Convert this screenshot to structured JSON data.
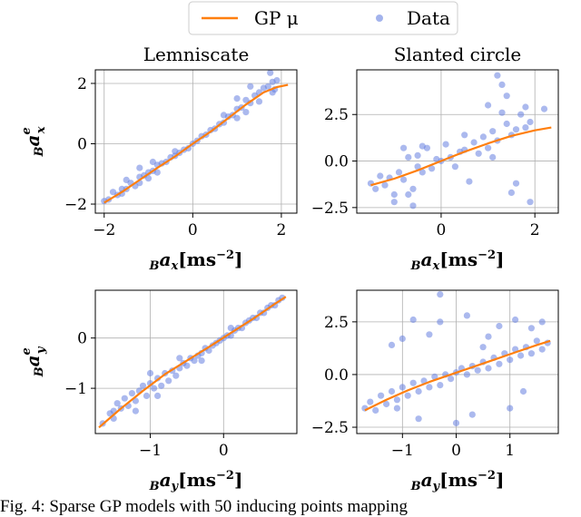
{
  "caption": "Fig. 4: Sparse GP models with 50 inducing points mapping",
  "legend": {
    "items": [
      {
        "label": "GP μ",
        "kind": "line",
        "color": "#ff7f0e"
      },
      {
        "label": "Data",
        "kind": "marker",
        "color": "#6680e0"
      }
    ]
  },
  "chart_data": [
    {
      "id": "lemniscate_x",
      "type": "scatter",
      "title": "Lemniscate",
      "ylabel_main": "a",
      "ylabel_sub": "B",
      "ylabel_sub2": "x",
      "ylabel_sup": "e",
      "xlabel_main": "a",
      "xlabel_sub": "B",
      "xlabel_sub2": "x",
      "xlabel_unit": "[ms",
      "xlabel_exp": "−2",
      "xlabel_close": "]",
      "xlim": [
        -2.2,
        2.35
      ],
      "ylim": [
        -2.3,
        2.45
      ],
      "xticks": [
        -2,
        0,
        2
      ],
      "xtick_labels": [
        "−2",
        "0",
        "2"
      ],
      "yticks": [
        -2,
        0,
        2
      ],
      "ytick_labels": [
        "−2",
        "0",
        "2"
      ],
      "series": [
        {
          "name": "GP μ",
          "kind": "line",
          "x": [
            -2.0,
            -1.6,
            -1.2,
            -0.8,
            -0.4,
            0.0,
            0.4,
            0.8,
            1.2,
            1.6,
            1.9,
            2.15
          ],
          "y": [
            -1.95,
            -1.6,
            -1.2,
            -0.8,
            -0.42,
            0.0,
            0.4,
            0.85,
            1.3,
            1.7,
            1.88,
            1.95
          ]
        },
        {
          "name": "Data",
          "kind": "scatter",
          "x": [
            -2.0,
            -1.9,
            -1.8,
            -1.7,
            -1.6,
            -1.6,
            -1.5,
            -1.4,
            -1.3,
            -1.2,
            -1.2,
            -1.1,
            -1.0,
            -1.0,
            -0.9,
            -0.8,
            -0.8,
            -0.7,
            -0.6,
            -0.5,
            -0.4,
            -0.3,
            -0.2,
            -0.1,
            0.0,
            0.1,
            0.2,
            0.3,
            0.4,
            0.5,
            0.6,
            0.7,
            0.8,
            0.9,
            1.0,
            1.0,
            1.1,
            1.2,
            1.2,
            1.3,
            1.4,
            1.5,
            1.5,
            1.6,
            1.7,
            1.8,
            1.8,
            1.9,
            1.3,
            1.0,
            0.7,
            -0.9,
            -1.5,
            1.75,
            1.85,
            -1.2,
            -0.4
          ],
          "y": [
            -1.9,
            -1.85,
            -1.6,
            -1.7,
            -1.5,
            -1.65,
            -1.5,
            -1.3,
            -1.4,
            -1.1,
            -1.3,
            -1.05,
            -0.95,
            -1.15,
            -0.9,
            -0.7,
            -0.95,
            -0.65,
            -0.6,
            -0.45,
            -0.4,
            -0.3,
            -0.2,
            -0.15,
            0.0,
            0.1,
            0.25,
            0.3,
            0.45,
            0.5,
            0.65,
            0.7,
            0.9,
            0.95,
            1.15,
            0.85,
            1.2,
            1.45,
            1.05,
            1.35,
            1.6,
            1.7,
            1.4,
            1.85,
            1.9,
            2.05,
            1.7,
            2.1,
            1.9,
            1.5,
            0.95,
            -0.6,
            -1.2,
            2.35,
            1.8,
            -0.8,
            -0.25
          ]
        }
      ]
    },
    {
      "id": "slanted_x",
      "type": "scatter",
      "title": "Slanted circle",
      "xlabel_main": "a",
      "xlabel_sub": "B",
      "xlabel_sub2": "x",
      "xlabel_unit": "[ms",
      "xlabel_exp": "−2",
      "xlabel_close": "]",
      "xlim": [
        -1.8,
        2.5
      ],
      "ylim": [
        -2.8,
        4.9
      ],
      "xticks": [
        0,
        2
      ],
      "xtick_labels": [
        "0",
        "2"
      ],
      "yticks": [
        -2.5,
        0,
        2.5
      ],
      "ytick_labels": [
        "−2.5",
        "0.0",
        "2.5"
      ],
      "series": [
        {
          "name": "GP μ",
          "kind": "line",
          "x": [
            -1.5,
            -1.0,
            -0.5,
            0.0,
            0.5,
            1.0,
            1.5,
            2.0,
            2.35
          ],
          "y": [
            -1.3,
            -0.95,
            -0.5,
            0.0,
            0.5,
            0.95,
            1.35,
            1.65,
            1.8
          ]
        },
        {
          "name": "Data",
          "kind": "scatter",
          "x": [
            -1.5,
            -1.4,
            -1.3,
            -1.2,
            -1.1,
            -1.0,
            -0.9,
            -0.8,
            -0.7,
            -0.6,
            -0.5,
            -0.4,
            -0.3,
            -0.2,
            -0.1,
            0.0,
            0.1,
            0.2,
            0.3,
            0.4,
            0.5,
            0.6,
            0.7,
            0.8,
            0.9,
            1.0,
            1.1,
            1.2,
            1.3,
            1.4,
            1.5,
            1.6,
            1.7,
            1.8,
            1.9,
            -1.0,
            -0.8,
            -0.6,
            -0.5,
            1.0,
            1.2,
            1.3,
            1.4,
            1.5,
            1.8,
            1.9,
            2.2,
            -0.4,
            -0.7,
            0.5,
            1.6,
            1.1
          ],
          "y": [
            -1.2,
            -1.5,
            -0.8,
            -1.3,
            -0.9,
            -1.8,
            -0.6,
            -1.0,
            0.2,
            -1.5,
            -0.3,
            -0.6,
            0.7,
            -0.4,
            0.1,
            0.0,
            0.9,
            0.2,
            -0.3,
            0.5,
            0.6,
            -1.1,
            1.0,
            0.4,
            1.3,
            0.7,
            1.6,
            1.1,
            4.1,
            2.0,
            1.4,
            -1.2,
            2.5,
            1.8,
            2.1,
            -2.2,
            0.7,
            -2.4,
            0.3,
            3.0,
            4.6,
            2.6,
            3.5,
            -1.7,
            2.9,
            -2.2,
            2.8,
            0.8,
            -1.8,
            1.4,
            1.7,
            0.2
          ]
        }
      ]
    },
    {
      "id": "lemniscate_y",
      "type": "scatter",
      "ylabel_main": "a",
      "ylabel_sub": "B",
      "ylabel_sub2": "y",
      "ylabel_sup": "e",
      "xlabel_main": "a",
      "xlabel_sub": "B",
      "xlabel_sub2": "y",
      "xlabel_unit": "[ms",
      "xlabel_exp": "−2",
      "xlabel_close": "]",
      "xlim": [
        -1.75,
        1.0
      ],
      "ylim": [
        -1.9,
        0.95
      ],
      "xticks": [
        -1,
        0
      ],
      "xtick_labels": [
        "−1",
        "0"
      ],
      "yticks": [
        -1,
        0
      ],
      "ytick_labels": [
        "−1",
        "0"
      ],
      "series": [
        {
          "name": "GP μ",
          "kind": "line",
          "x": [
            -1.7,
            -1.4,
            -1.1,
            -0.8,
            -0.5,
            -0.2,
            0.1,
            0.4,
            0.7,
            0.85
          ],
          "y": [
            -1.78,
            -1.4,
            -1.05,
            -0.72,
            -0.45,
            -0.18,
            0.1,
            0.38,
            0.68,
            0.82
          ]
        },
        {
          "name": "Data",
          "kind": "scatter",
          "x": [
            -1.65,
            -1.55,
            -1.5,
            -1.45,
            -1.4,
            -1.35,
            -1.3,
            -1.25,
            -1.2,
            -1.15,
            -1.1,
            -1.05,
            -1.0,
            -0.95,
            -0.9,
            -0.85,
            -0.8,
            -0.75,
            -0.7,
            -0.65,
            -0.6,
            -0.55,
            -0.5,
            -0.45,
            -0.4,
            -0.35,
            -0.3,
            -0.25,
            -0.2,
            -0.15,
            -0.1,
            -0.05,
            0.0,
            0.05,
            0.1,
            0.15,
            0.2,
            0.25,
            0.3,
            0.35,
            0.4,
            0.45,
            0.5,
            0.55,
            0.6,
            0.65,
            0.7,
            0.75,
            0.8,
            -1.2,
            -0.9,
            -0.6,
            -1.0,
            -0.3,
            0.1,
            -1.5
          ],
          "y": [
            -1.7,
            -1.5,
            -1.6,
            -1.3,
            -1.4,
            -1.2,
            -1.35,
            -1.1,
            -1.25,
            -1.05,
            -0.95,
            -1.15,
            -0.9,
            -1.0,
            -0.8,
            -0.95,
            -0.7,
            -0.85,
            -0.65,
            -0.75,
            -0.6,
            -0.5,
            -0.55,
            -0.4,
            -0.45,
            -0.35,
            -0.3,
            -0.2,
            -0.25,
            -0.15,
            -0.1,
            -0.05,
            0.0,
            0.05,
            0.05,
            0.15,
            0.2,
            0.2,
            0.3,
            0.35,
            0.4,
            0.4,
            0.5,
            0.5,
            0.6,
            0.65,
            0.65,
            0.75,
            0.8,
            -1.45,
            -1.15,
            -0.4,
            -0.7,
            -0.45,
            0.2,
            -1.45
          ]
        }
      ]
    },
    {
      "id": "slanted_y",
      "type": "scatter",
      "xlabel_main": "a",
      "xlabel_sub": "B",
      "xlabel_sub2": "y",
      "xlabel_unit": "[ms",
      "xlabel_exp": "−2",
      "xlabel_close": "]",
      "xlim": [
        -1.85,
        1.9
      ],
      "ylim": [
        -2.8,
        4.0
      ],
      "xticks": [
        -1,
        0,
        1
      ],
      "xtick_labels": [
        "−1",
        "0",
        "1"
      ],
      "yticks": [
        -2.5,
        0,
        2.5
      ],
      "ytick_labels": [
        "−2.5",
        "0.0",
        "2.5"
      ],
      "series": [
        {
          "name": "GP μ",
          "kind": "line",
          "x": [
            -1.7,
            -1.3,
            -0.9,
            -0.5,
            -0.1,
            0.3,
            0.7,
            1.1,
            1.5,
            1.75
          ],
          "y": [
            -1.7,
            -1.2,
            -0.75,
            -0.35,
            0.0,
            0.35,
            0.7,
            1.05,
            1.4,
            1.6
          ]
        },
        {
          "name": "Data",
          "kind": "scatter",
          "x": [
            -1.7,
            -1.6,
            -1.5,
            -1.4,
            -1.3,
            -1.2,
            -1.1,
            -1.0,
            -0.9,
            -0.8,
            -0.7,
            -0.6,
            -0.5,
            -0.4,
            -0.3,
            -0.2,
            -0.1,
            0.0,
            0.1,
            0.2,
            0.3,
            0.4,
            0.5,
            0.6,
            0.7,
            0.8,
            0.9,
            1.0,
            1.1,
            1.2,
            1.3,
            1.4,
            1.5,
            1.6,
            1.7,
            -1.2,
            -1.0,
            -0.8,
            -0.5,
            -0.3,
            0.2,
            0.5,
            0.8,
            1.1,
            1.4,
            -1.1,
            -0.7,
            0.3,
            1.0,
            1.6,
            -0.3,
            0.0,
            0.6,
            1.25
          ],
          "y": [
            -1.6,
            -1.3,
            -1.7,
            -1.0,
            -1.4,
            -0.8,
            -1.2,
            -0.6,
            -1.0,
            -0.4,
            -0.8,
            -0.3,
            -0.6,
            -0.1,
            -0.5,
            0.0,
            -0.2,
            0.1,
            0.3,
            0.0,
            0.4,
            0.2,
            0.6,
            0.3,
            0.8,
            0.5,
            1.0,
            0.7,
            1.2,
            0.9,
            1.3,
            1.0,
            1.6,
            1.2,
            1.5,
            1.4,
            1.7,
            2.6,
            1.9,
            2.5,
            2.8,
            1.3,
            2.3,
            2.6,
            2.2,
            -1.6,
            -2.1,
            -1.9,
            -1.6,
            2.5,
            3.8,
            -2.3,
            1.8,
            -0.8
          ]
        }
      ]
    }
  ]
}
